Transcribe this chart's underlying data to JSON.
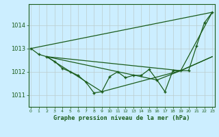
{
  "title": "Graphe pression niveau de la mer (hPa)",
  "bg_color": "#cceeff",
  "grid_color": "#bbcccc",
  "line_color": "#1a5c1a",
  "x_ticks": [
    0,
    1,
    2,
    3,
    4,
    5,
    6,
    7,
    8,
    9,
    10,
    11,
    12,
    13,
    14,
    15,
    16,
    17,
    18,
    19,
    20,
    21,
    22,
    23
  ],
  "y_ticks": [
    1011,
    1012,
    1013,
    1014
  ],
  "ylim": [
    1010.5,
    1014.9
  ],
  "xlim": [
    -0.3,
    23.3
  ],
  "series1_x": [
    0,
    1,
    2,
    3,
    4,
    5,
    6,
    7,
    8,
    9,
    10,
    11,
    12,
    13,
    14,
    15,
    16,
    17,
    18,
    19,
    20,
    21,
    22,
    23
  ],
  "series1_y": [
    1013.0,
    1012.75,
    1012.65,
    1012.45,
    1012.15,
    1012.0,
    1011.85,
    1011.55,
    1011.1,
    1011.15,
    1011.8,
    1012.0,
    1011.75,
    1011.85,
    1011.85,
    1012.1,
    1011.65,
    1011.15,
    1012.05,
    1012.05,
    1012.05,
    1013.1,
    1014.1,
    1014.55
  ],
  "series2_x": [
    0,
    23
  ],
  "series2_y": [
    1013.0,
    1014.55
  ],
  "series3_x": [
    2,
    9,
    19,
    23
  ],
  "series3_y": [
    1012.65,
    1011.15,
    1012.05,
    1014.55
  ],
  "series4_x": [
    2,
    19,
    23
  ],
  "series4_y": [
    1012.65,
    1012.05,
    1012.65
  ],
  "series5_x": [
    2,
    16,
    19,
    23
  ],
  "series5_y": [
    1012.65,
    1011.65,
    1012.05,
    1012.65
  ]
}
